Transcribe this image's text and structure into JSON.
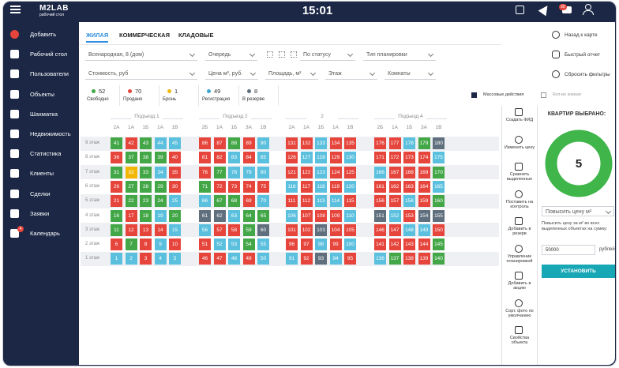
{
  "header": {
    "logo": "M2LAB",
    "logo_subtitle": "рабочий стол",
    "time": "15:01",
    "notifications": "99"
  },
  "sidebar": {
    "items": [
      "Добавить",
      "Рабочий стол",
      "Пользователи",
      "Объекты",
      "Шахматка",
      "Недвижимость",
      "Статистика",
      "Клиенты",
      "Сделки",
      "Заявки",
      "Календарь"
    ],
    "calendar_badge": "4"
  },
  "tabs": [
    "ЖИЛАЯ",
    "КОММЕРЧЕСКАЯ",
    "КЛАДОВЫЕ"
  ],
  "actions": [
    "Назад к карте",
    "Быстрый отчет",
    "Сбросить фильтры"
  ],
  "filters": {
    "row1": [
      "Всенародная, 8 (дом)",
      "Очередь",
      "По статусу",
      "Тип планировки"
    ],
    "row2": [
      "Стоимость, руб",
      "Цена м², руб.",
      "Площадь, м²",
      "Этаж",
      "Комнаты"
    ]
  },
  "legend": [
    {
      "count": 52,
      "label": "Свободно",
      "color": "#43a747"
    },
    {
      "count": 70,
      "label": "Продано",
      "color": "#e6453c"
    },
    {
      "count": 1,
      "label": "Бронь",
      "color": "#f2b705"
    },
    {
      "count": 49,
      "label": "Регистрация",
      "color": "#3aa6cf"
    },
    {
      "count": 8,
      "label": "В резерве",
      "color": "#5f6f7d"
    }
  ],
  "mass_actions": "Массовые действия",
  "rooms_count": "Кол-во комнат",
  "floors": [
    "9 этаж",
    "8 этаж",
    "7 этаж",
    "6 этаж",
    "5 этаж",
    "4 этаж",
    "3 этаж",
    "2 этаж",
    "1 этаж"
  ],
  "sections": [
    {
      "title": "Подъезд 1",
      "columns": [
        "2А",
        "1А",
        "1Б",
        "1А",
        "1В"
      ],
      "rows": [
        [
          41,
          42,
          43,
          44,
          45
        ],
        [
          36,
          37,
          38,
          39,
          40
        ],
        [
          31,
          32,
          33,
          34,
          35
        ],
        [
          26,
          27,
          28,
          29,
          30
        ],
        [
          21,
          22,
          23,
          24,
          25
        ],
        [
          16,
          17,
          18,
          19,
          20
        ],
        [
          11,
          12,
          13,
          14,
          15
        ],
        [
          6,
          7,
          8,
          9,
          10
        ],
        [
          1,
          2,
          3,
          4,
          5
        ]
      ],
      "colors": [
        [
          "#43a747",
          "#e6453c",
          "#43a747",
          "#5bc0de",
          "#5bc0de"
        ],
        [
          "#e6453c",
          "#43a747",
          "#43a747",
          "#43a747",
          "#e6453c"
        ],
        [
          "#43a747",
          "#f2b705",
          "#43a747",
          "#5bc0de",
          "#e6453c"
        ],
        [
          "#e6453c",
          "#43a747",
          "#43a747",
          "#43a747",
          "#e6453c"
        ],
        [
          "#e6453c",
          "#43a747",
          "#43a747",
          "#43a747",
          "#5bc0de"
        ],
        [
          "#43a747",
          "#e6453c",
          "#43a747",
          "#5bc0de",
          "#43a747"
        ],
        [
          "#43a747",
          "#e6453c",
          "#e6453c",
          "#e6453c",
          "#5bc0de"
        ],
        [
          "#e6453c",
          "#43a747",
          "#e6453c",
          "#5bc0de",
          "#e6453c"
        ],
        [
          "#5bc0de",
          "#5bc0de",
          "#e6453c",
          "#5bc0de",
          "#5bc0de"
        ]
      ]
    },
    {
      "title": "Подъезд 2",
      "columns": [
        "2Б",
        "1А",
        "1Б",
        "3А",
        "1В"
      ],
      "rows": [
        [
          86,
          87,
          88,
          89,
          90
        ],
        [
          81,
          82,
          83,
          84,
          85
        ],
        [
          76,
          77,
          78,
          79,
          80
        ],
        [
          71,
          72,
          73,
          74,
          75
        ],
        [
          66,
          67,
          68,
          69,
          70
        ],
        [
          61,
          62,
          63,
          64,
          65
        ],
        [
          56,
          57,
          58,
          59,
          60
        ],
        [
          51,
          52,
          53,
          54,
          55
        ],
        [
          46,
          47,
          48,
          49,
          50
        ]
      ],
      "colors": [
        [
          "#e6453c",
          "#e6453c",
          "#43a747",
          "#e6453c",
          "#5bc0de"
        ],
        [
          "#e6453c",
          "#e6453c",
          "#5bc0de",
          "#e6453c",
          "#5bc0de"
        ],
        [
          "#e6453c",
          "#43a747",
          "#5bc0de",
          "#5bc0de",
          "#5bc0de"
        ],
        [
          "#43a747",
          "#e6453c",
          "#e6453c",
          "#e6453c",
          "#e6453c"
        ],
        [
          "#5bc0de",
          "#43a747",
          "#43a747",
          "#e6453c",
          "#5bc0de"
        ],
        [
          "#5f6f7d",
          "#5f6f7d",
          "#5bc0de",
          "#43a747",
          "#43a747"
        ],
        [
          "#5bc0de",
          "#e6453c",
          "#e6453c",
          "#43a747",
          "#5f6f7d"
        ],
        [
          "#e6453c",
          "#5bc0de",
          "#5bc0de",
          "#43a747",
          "#5bc0de"
        ],
        [
          "#e6453c",
          "#e6453c",
          "#5bc0de",
          "#e6453c",
          "#5bc0de"
        ]
      ]
    },
    {
      "title": "2",
      "columns": [
        "2А",
        "1А",
        "1Б",
        "1А",
        "1В"
      ],
      "rows": [
        [
          131,
          132,
          133,
          134,
          135
        ],
        [
          126,
          127,
          128,
          129,
          130
        ],
        [
          121,
          122,
          123,
          124,
          125
        ],
        [
          116,
          117,
          118,
          119,
          120
        ],
        [
          111,
          112,
          113,
          114,
          115
        ],
        [
          106,
          107,
          108,
          109,
          110
        ],
        [
          101,
          102,
          103,
          104,
          105
        ],
        [
          96,
          97,
          98,
          99,
          100
        ],
        [
          91,
          92,
          93,
          94,
          95
        ]
      ],
      "colors": [
        [
          "#e6453c",
          "#e6453c",
          "#5bc0de",
          "#e6453c",
          "#e6453c"
        ],
        [
          "#e6453c",
          "#5bc0de",
          "#5bc0de",
          "#e6453c",
          "#5bc0de"
        ],
        [
          "#e6453c",
          "#e6453c",
          "#5bc0de",
          "#e6453c",
          "#e6453c"
        ],
        [
          "#5bc0de",
          "#e6453c",
          "#5bc0de",
          "#e6453c",
          "#5bc0de"
        ],
        [
          "#e6453c",
          "#e6453c",
          "#5bc0de",
          "#5bc0de",
          "#e6453c"
        ],
        [
          "#5bc0de",
          "#e6453c",
          "#e6453c",
          "#e6453c",
          "#5bc0de"
        ],
        [
          "#e6453c",
          "#e6453c",
          "#5f6f7d",
          "#e6453c",
          "#e6453c"
        ],
        [
          "#e6453c",
          "#e6453c",
          "#5bc0de",
          "#e6453c",
          "#5bc0de"
        ],
        [
          "#5bc0de",
          "#e6453c",
          "#5f6f7d",
          "#5bc0de",
          "#e6453c"
        ]
      ]
    },
    {
      "title": "Подъезд 4",
      "columns": [
        "2Б",
        "1А",
        "1Б",
        "3А",
        "1В"
      ],
      "rows": [
        [
          176,
          177,
          178,
          179,
          180
        ],
        [
          171,
          172,
          173,
          174,
          175
        ],
        [
          166,
          167,
          168,
          169,
          170
        ],
        [
          161,
          162,
          163,
          164,
          165
        ],
        [
          156,
          157,
          158,
          159,
          160
        ],
        [
          151,
          152,
          153,
          154,
          155
        ],
        [
          146,
          147,
          148,
          149,
          150
        ],
        [
          141,
          142,
          143,
          144,
          145
        ],
        [
          136,
          137,
          138,
          139,
          140
        ]
      ],
      "colors": [
        [
          "#e6453c",
          "#e6453c",
          "#5bc0de",
          "#43a747",
          "#5f6f7d"
        ],
        [
          "#e6453c",
          "#e6453c",
          "#e6453c",
          "#e6453c",
          "#5bc0de"
        ],
        [
          "#5bc0de",
          "#e6453c",
          "#e6453c",
          "#e6453c",
          "#43a747"
        ],
        [
          "#e6453c",
          "#e6453c",
          "#e6453c",
          "#e6453c",
          "#5bc0de"
        ],
        [
          "#e6453c",
          "#e6453c",
          "#5bc0de",
          "#e6453c",
          "#43a747"
        ],
        [
          "#5f6f7d",
          "#5bc0de",
          "#e6453c",
          "#5f6f7d",
          "#5f6f7d"
        ],
        [
          "#e6453c",
          "#e6453c",
          "#5bc0de",
          "#5bc0de",
          "#e6453c"
        ],
        [
          "#e6453c",
          "#e6453c",
          "#e6453c",
          "#e6453c",
          "#43a747"
        ],
        [
          "#5bc0de",
          "#43a747",
          "#e6453c",
          "#e6453c",
          "#43a747"
        ]
      ]
    }
  ],
  "tools": [
    "Создать ФИД",
    "Изменить цену",
    "Сравнить выделенные",
    "Поставить на контроль",
    "Добавить в резерв",
    "Управление планировкой",
    "Добавить в акцию",
    "Сорт. фото по умолчанию",
    "Свойства объекта"
  ],
  "panel": {
    "title": "КВАРТИР ВЫБРАНО:",
    "selected_count": 5,
    "ring_color": "#3fb54a",
    "dropdown": "Повысить цену м²",
    "description": "Повысить цену за м² во всех выделенных объектах на сумму:",
    "input": "50000",
    "unit": "рублей",
    "button": "УСТАНОВИТЬ"
  }
}
